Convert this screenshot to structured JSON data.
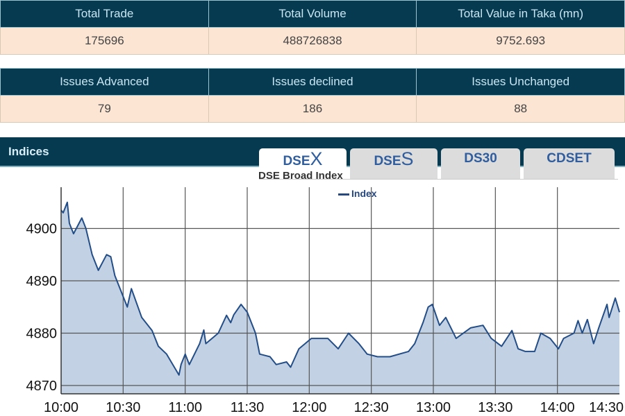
{
  "summary1": {
    "headers": [
      "Total Trade",
      "Total Volume",
      "Total Value in Taka (mn)"
    ],
    "values": [
      "175696",
      "488726838",
      "9752.693"
    ]
  },
  "summary2": {
    "headers": [
      "Issues Advanced",
      "Issues declined",
      "Issues Unchanged"
    ],
    "values": [
      "79",
      "186",
      "88"
    ]
  },
  "indices": {
    "title": "Indices",
    "tabs": [
      {
        "prefix": "DSE",
        "suffix": "X"
      },
      {
        "prefix": "DSE",
        "suffix": "S"
      },
      {
        "label": "DS30"
      },
      {
        "label": "CDSET"
      }
    ]
  },
  "chart_data": {
    "type": "area",
    "title": "DSE Broad Index",
    "xlabel": "",
    "ylabel": "",
    "legend": [
      "Index"
    ],
    "legend_position": "top-center",
    "x_ticks": [
      "10:00",
      "10:30",
      "11:00",
      "11:30",
      "12:00",
      "12:30",
      "13:00",
      "13:30",
      "14:00",
      "14:30"
    ],
    "y_ticks": [
      4870,
      4880,
      4890,
      4900
    ],
    "ylim": [
      4868.4,
      4908
    ],
    "xlim_minutes_from_10": [
      0,
      270
    ],
    "grid": true,
    "colors": {
      "line": "#234d87",
      "fill": "#c2d2e4"
    },
    "series": [
      {
        "name": "Index",
        "x": [
          0,
          1,
          3,
          4,
          6,
          10,
          12,
          15,
          18,
          22,
          24,
          26,
          32,
          34,
          39,
          44,
          47,
          51,
          57,
          58,
          60,
          62,
          67,
          69,
          70,
          76,
          80,
          82,
          83.5,
          87,
          90,
          94,
          96,
          101,
          104,
          109,
          111,
          115,
          121,
          125,
          129,
          134,
          139,
          144,
          148,
          153,
          159,
          168,
          171,
          175,
          177.5,
          179.5,
          183,
          186,
          191,
          198,
          204,
          208,
          213,
          218,
          221,
          224.5,
          229,
          232,
          236.5,
          240.5,
          243,
          248,
          250,
          252,
          254.5,
          257.5,
          260,
          264,
          265,
          268,
          270
        ],
        "y": [
          4903.5,
          4903,
          4905,
          4901,
          4899,
          4902,
          4900,
          4895,
          4892,
          4895,
          4894.6,
          4891,
          4885,
          4888.5,
          4883,
          4880.5,
          4877.5,
          4876,
          4872,
          4874,
          4876,
          4874,
          4878,
          4880.6,
          4878,
          4880,
          4883.4,
          4882,
          4883.5,
          4885.5,
          4884,
          4880,
          4876,
          4875.5,
          4874,
          4874.5,
          4873.5,
          4877,
          4879,
          4879,
          4879,
          4877,
          4880,
          4878,
          4876,
          4875.5,
          4875.5,
          4876.5,
          4878,
          4882,
          4885,
          4885.5,
          4881.5,
          4883,
          4879,
          4881,
          4881.5,
          4879,
          4877.5,
          4880.5,
          4877,
          4876.5,
          4876.5,
          4880,
          4879,
          4877,
          4879,
          4880,
          4882.4,
          4880,
          4882.6,
          4878,
          4881,
          4885.5,
          4883,
          4886.7,
          4884
        ]
      }
    ]
  }
}
